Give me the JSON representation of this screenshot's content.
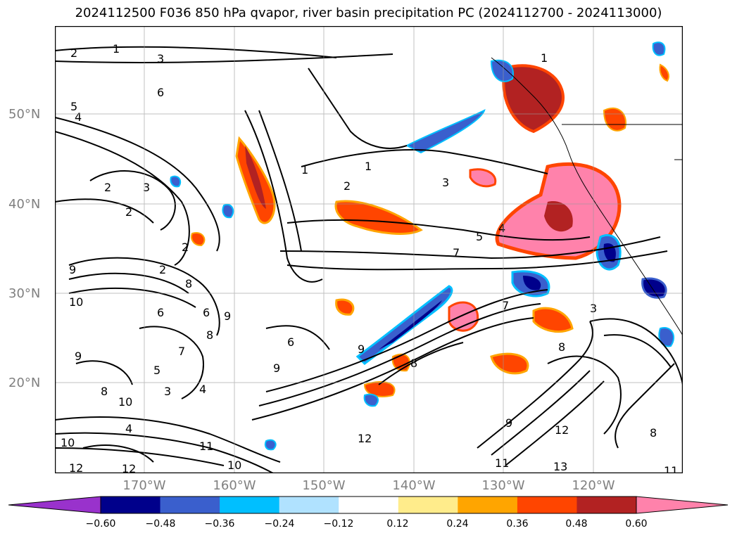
{
  "title": "2024112500 F036 850 hPa qvapor, river basin precipitation PC (2024112700 - 2024113000)",
  "lat_labels": [
    "50°N",
    "40°N",
    "30°N",
    "20°N"
  ],
  "lon_labels": [
    "170°W",
    "160°W",
    "150°W",
    "140°W",
    "130°W",
    "120°W"
  ],
  "colorbar": {
    "ticks": [
      "−0.60",
      "−0.48",
      "−0.36",
      "−0.24",
      "−0.12",
      "0.12",
      "0.24",
      "0.36",
      "0.48",
      "0.60"
    ],
    "colors": [
      "#9932cc",
      "#00008b",
      "#3a5fcd",
      "#00bfff",
      "#b0e2ff",
      "#ffffff",
      "#ffec8b",
      "#ffa500",
      "#ff4500",
      "#b22222",
      "#ff82ab"
    ]
  },
  "contour_labels": [
    "1",
    "2",
    "3",
    "4",
    "5",
    "6",
    "7",
    "8",
    "9",
    "10",
    "11",
    "12",
    "13"
  ],
  "map": {
    "lon_range": [
      -180,
      -110
    ],
    "lat_range": [
      10,
      60
    ],
    "gridlines": true,
    "coastlines": true
  }
}
